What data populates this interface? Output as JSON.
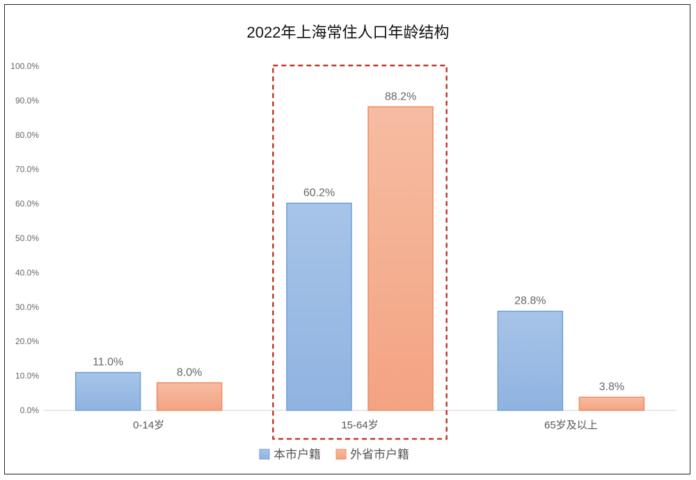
{
  "chart_data": {
    "type": "bar",
    "title": "2022年上海常住人口年龄结构",
    "categories": [
      "0-14岁",
      "15-64岁",
      "65岁及以上"
    ],
    "series": [
      {
        "name": "本市户籍",
        "values": [
          11.0,
          60.2,
          28.8
        ],
        "labels": [
          "11.0%",
          "60.2%",
          "28.8%"
        ],
        "color": "#a7c4e8",
        "color_bottom": "#8fb3e0",
        "stroke": "#6f9fd8"
      },
      {
        "name": "外省市户籍",
        "values": [
          8.0,
          88.2,
          3.8
        ],
        "labels": [
          "8.0%",
          "88.2%",
          "3.8%"
        ],
        "color": "#f6bca2",
        "color_bottom": "#f3a382",
        "stroke": "#ee8a5c"
      }
    ],
    "y_ticks": [
      "0.0%",
      "10.0%",
      "20.0%",
      "30.0%",
      "40.0%",
      "50.0%",
      "60.0%",
      "70.0%",
      "80.0%",
      "90.0%",
      "100.0%"
    ],
    "ylim": [
      0,
      100
    ],
    "xlabel": "",
    "ylabel": "",
    "grid": false,
    "legend": "bottom-center",
    "highlight_category": "15-64岁",
    "highlight_color": "#c0392b"
  }
}
